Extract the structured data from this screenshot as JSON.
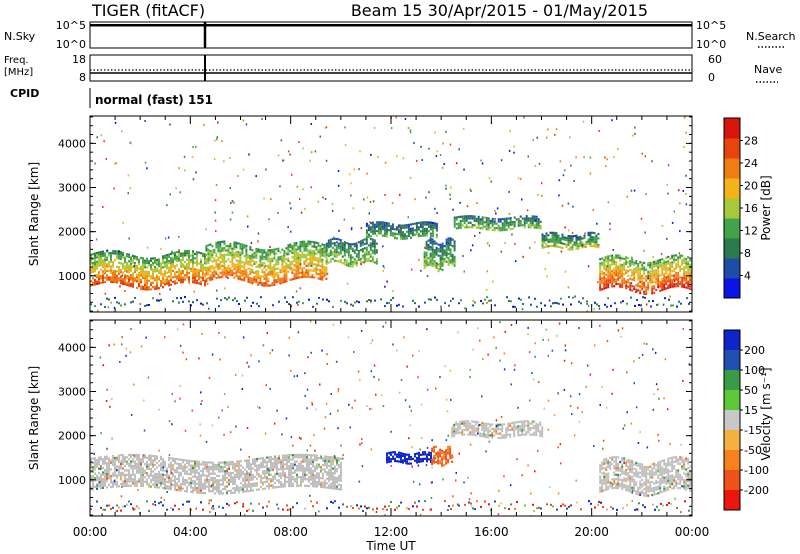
{
  "header": {
    "station": "TIGER (fitACF)",
    "beam_date": "Beam 15  30/Apr/2015 - 01/May/2015"
  },
  "nsky": {
    "label": "N.Sky",
    "left_ticks": [
      "10^5",
      "10^0"
    ],
    "right_ticks": [
      "10^5",
      "10^0"
    ],
    "right_label": "N.Search"
  },
  "freq": {
    "label_line1": "Freq.",
    "label_line2": "[MHz]",
    "left_ticks": [
      "18",
      "8"
    ],
    "right_ticks": [
      "60",
      "0"
    ],
    "right_label": "Nave"
  },
  "cpid": {
    "label": "CPID",
    "mode": "normal (fast) 151"
  },
  "colors": {
    "power_scale": [
      "#0a14e6",
      "#1e4da8",
      "#2c7a4c",
      "#43a24a",
      "#a6c83a",
      "#f2b21b",
      "#f07d14",
      "#e8440f",
      "#d8160c"
    ],
    "velocity_scale": [
      "#e8160c",
      "#f0501a",
      "#f5821e",
      "#f5b040",
      "#c8c8c8",
      "#c8c8c8",
      "#5cc83a",
      "#3a9a46",
      "#2050b0",
      "#1024c8"
    ],
    "ground_scatter": "#bebebe"
  },
  "chart_data": [
    {
      "type": "heatmap",
      "name": "power",
      "ylabel": "Slant Range [km]",
      "ylim": [
        180,
        4620
      ],
      "yticks": [
        "1000",
        "2000",
        "3000",
        "4000"
      ],
      "xlim_hours": [
        0,
        24
      ],
      "colorbar": {
        "label": "Power [dB]",
        "range": [
          0,
          32
        ],
        "ticks": [
          "4",
          "8",
          "12",
          "16",
          "20",
          "24",
          "28"
        ]
      },
      "regions": [
        {
          "t0": 0.0,
          "t1": 4.6,
          "r_center": 1150,
          "r_halfwidth": 350,
          "value": 20
        },
        {
          "t0": 4.6,
          "t1": 9.4,
          "r_center": 1300,
          "r_halfwidth": 400,
          "value": 19
        },
        {
          "t0": 9.4,
          "t1": 11.4,
          "r_center": 1550,
          "r_halfwidth": 250,
          "value": 12
        },
        {
          "t0": 11.0,
          "t1": 13.8,
          "r_center": 2050,
          "r_halfwidth": 150,
          "value": 10
        },
        {
          "t0": 13.3,
          "t1": 14.5,
          "r_center": 1500,
          "r_halfwidth": 300,
          "value": 12
        },
        {
          "t0": 14.5,
          "t1": 18.0,
          "r_center": 2200,
          "r_halfwidth": 140,
          "value": 12
        },
        {
          "t0": 18.0,
          "t1": 20.3,
          "r_center": 1800,
          "r_halfwidth": 160,
          "value": 13
        },
        {
          "t0": 20.3,
          "t1": 24.0,
          "r_center": 1050,
          "r_halfwidth": 350,
          "value": 22
        }
      ]
    },
    {
      "type": "heatmap",
      "name": "velocity",
      "ylabel": "Slant Range [km]",
      "xlabel": "Time UT",
      "ylim": [
        180,
        4620
      ],
      "yticks": [
        "1000",
        "2000",
        "3000",
        "4000"
      ],
      "xticks": [
        "00:00",
        "04:00",
        "08:00",
        "12:00",
        "16:00",
        "20:00",
        "00:00"
      ],
      "xlim_hours": [
        0,
        24
      ],
      "colorbar": {
        "label": "Velocity [m s⁻¹]",
        "ticks": [
          "200",
          "100",
          "50",
          "15",
          "-15",
          "-50",
          "-100",
          "-200"
        ]
      },
      "regions": [
        {
          "t0": 0.0,
          "t1": 10.0,
          "r_center": 1150,
          "r_halfwidth": 350,
          "value": 0,
          "note": "ground scatter"
        },
        {
          "t0": 11.8,
          "t1": 13.6,
          "r_center": 1500,
          "r_halfwidth": 120,
          "value": 200
        },
        {
          "t0": 13.6,
          "t1": 14.4,
          "r_center": 1550,
          "r_halfwidth": 180,
          "value": -80
        },
        {
          "t0": 14.4,
          "t1": 18.0,
          "r_center": 2150,
          "r_halfwidth": 160,
          "value": 0,
          "note": "ground scatter"
        },
        {
          "t0": 20.3,
          "t1": 24.0,
          "r_center": 1100,
          "r_halfwidth": 350,
          "value": 0,
          "note": "ground scatter"
        }
      ]
    }
  ]
}
